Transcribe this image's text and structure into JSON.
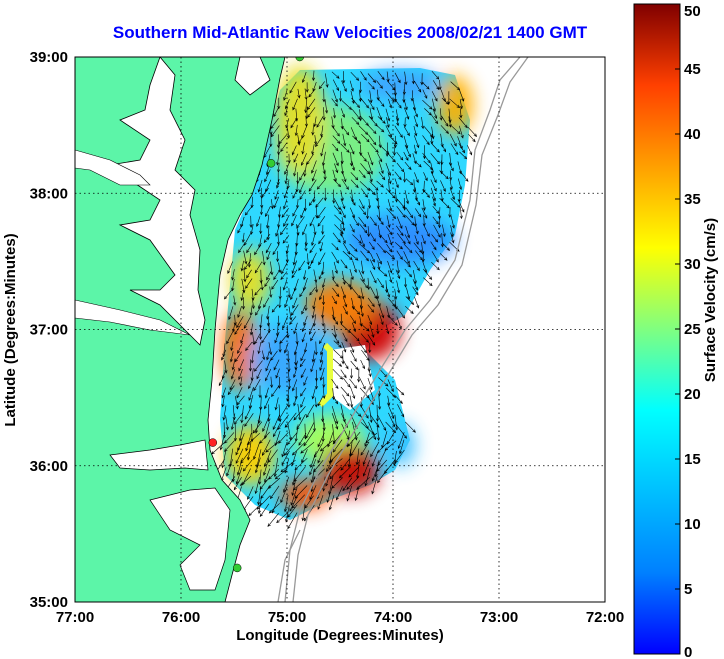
{
  "title": "Southern Mid-Atlantic Raw Velocities 2008/02/21 1400 GMT",
  "map": {
    "xlabel": "Longitude (Degrees:Minutes)",
    "ylabel": "Latitude (Degrees:Minutes)",
    "x_ticks": [
      {
        "value": -77,
        "label": "77:00"
      },
      {
        "value": -76,
        "label": "76:00"
      },
      {
        "value": -75,
        "label": "75:00"
      },
      {
        "value": -74,
        "label": "74:00"
      },
      {
        "value": -73,
        "label": "73:00"
      },
      {
        "value": -72,
        "label": "72:00"
      }
    ],
    "y_ticks": [
      {
        "value": 35,
        "label": "35:00"
      },
      {
        "value": 36,
        "label": "36:00"
      },
      {
        "value": 37,
        "label": "37:00"
      },
      {
        "value": 38,
        "label": "38:00"
      },
      {
        "value": 39,
        "label": "39:00"
      }
    ],
    "xlim": [
      -77,
      -72
    ],
    "ylim": [
      35,
      39
    ],
    "grid": "dotted",
    "land_color": "#5cf5a8",
    "coastline_color": "#000000",
    "stations": [
      {
        "lon": -74.88,
        "lat": 39.0,
        "color": "#33cc33"
      },
      {
        "lon": -75.15,
        "lat": 38.22,
        "color": "#33cc33"
      },
      {
        "lon": -75.7,
        "lat": 36.17,
        "color": "#ff2222"
      },
      {
        "lon": -75.47,
        "lat": 35.25,
        "color": "#33cc33"
      }
    ]
  },
  "colorbar": {
    "label": "Surface Velocity (cm/s)",
    "min": 0,
    "max": 50,
    "ticks": [
      "0",
      "5",
      "10",
      "15",
      "20",
      "25",
      "30",
      "35",
      "40",
      "45",
      "50"
    ],
    "colormap": "jet"
  }
}
